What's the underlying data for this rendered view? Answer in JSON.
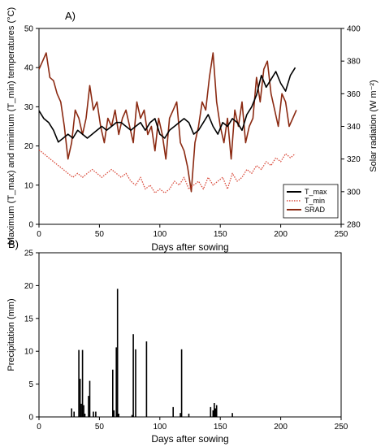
{
  "chart_data": [
    {
      "panel_label": "A)",
      "type": "line",
      "xlabel": "Days after sowing",
      "ylabel": "Maximum (T_max) and minimum (T_min) temperatures (°C)",
      "y2label": "Solar radiation (W m⁻²)",
      "xlim": [
        0,
        250
      ],
      "ylim": [
        0,
        50
      ],
      "y2lim": [
        280,
        400
      ],
      "xticks": [
        0,
        50,
        100,
        150,
        200,
        250
      ],
      "yticks": [
        0,
        10,
        20,
        30,
        40,
        50
      ],
      "y2ticks": [
        280,
        300,
        320,
        340,
        360,
        380,
        400
      ],
      "legend_position": "lower-right",
      "series": [
        {
          "name": "T_max",
          "axis": "left",
          "color": "#000000",
          "style": "solid",
          "x": [
            0,
            4,
            8,
            12,
            16,
            20,
            24,
            28,
            32,
            36,
            40,
            44,
            48,
            52,
            56,
            60,
            64,
            68,
            72,
            76,
            80,
            84,
            88,
            92,
            96,
            100,
            104,
            108,
            112,
            116,
            120,
            124,
            128,
            132,
            136,
            140,
            144,
            148,
            152,
            156,
            160,
            164,
            168,
            172,
            176,
            180,
            184,
            188,
            192,
            196,
            200,
            204,
            208,
            212
          ],
          "y": [
            29,
            27,
            26,
            24,
            21,
            22,
            23,
            22,
            24,
            23,
            22,
            23,
            24,
            25,
            24,
            25,
            26,
            26,
            25,
            24,
            25,
            26,
            24,
            26,
            27,
            23,
            22,
            24,
            25,
            26,
            27,
            26,
            23,
            24,
            26,
            28,
            25,
            23,
            26,
            25,
            27,
            26,
            24,
            28,
            30,
            33,
            38,
            35,
            37,
            39,
            36,
            34,
            38,
            40
          ]
        },
        {
          "name": "T_min",
          "axis": "left",
          "color": "#d94a3a",
          "style": "dotted",
          "x": [
            0,
            4,
            8,
            12,
            16,
            20,
            24,
            28,
            32,
            36,
            40,
            44,
            48,
            52,
            56,
            60,
            64,
            68,
            72,
            76,
            80,
            84,
            88,
            92,
            96,
            100,
            104,
            108,
            112,
            116,
            120,
            124,
            128,
            132,
            136,
            140,
            144,
            148,
            152,
            156,
            160,
            164,
            168,
            172,
            176,
            180,
            184,
            188,
            192,
            196,
            200,
            204,
            208,
            212
          ],
          "y": [
            19,
            18,
            17,
            16,
            15,
            14,
            13,
            12,
            13,
            12,
            13,
            14,
            13,
            12,
            13,
            14,
            13,
            12,
            13,
            11,
            10,
            12,
            9,
            10,
            8,
            9,
            8,
            9,
            11,
            10,
            12,
            9,
            10,
            11,
            9,
            12,
            10,
            11,
            12,
            9,
            13,
            11,
            12,
            14,
            13,
            15,
            14,
            16,
            15,
            17,
            16,
            18,
            17,
            18
          ]
        },
        {
          "name": "SRAD",
          "axis": "right",
          "color": "#8b2a12",
          "style": "solid",
          "x": [
            0,
            3,
            6,
            9,
            12,
            15,
            18,
            21,
            24,
            27,
            30,
            33,
            36,
            39,
            42,
            45,
            48,
            51,
            54,
            57,
            60,
            63,
            66,
            69,
            72,
            75,
            78,
            81,
            84,
            87,
            90,
            93,
            96,
            99,
            102,
            105,
            108,
            111,
            114,
            117,
            120,
            123,
            126,
            129,
            132,
            135,
            138,
            141,
            144,
            147,
            150,
            153,
            156,
            159,
            162,
            165,
            168,
            171,
            174,
            177,
            180,
            183,
            186,
            189,
            192,
            195,
            198,
            201,
            204,
            207,
            210,
            213
          ],
          "y": [
            375,
            380,
            385,
            370,
            368,
            360,
            355,
            340,
            320,
            330,
            350,
            345,
            335,
            345,
            365,
            350,
            355,
            340,
            330,
            345,
            340,
            350,
            335,
            345,
            350,
            340,
            330,
            355,
            345,
            350,
            335,
            340,
            325,
            345,
            335,
            320,
            345,
            350,
            355,
            330,
            325,
            315,
            300,
            330,
            340,
            355,
            350,
            370,
            385,
            355,
            340,
            330,
            345,
            320,
            350,
            340,
            355,
            330,
            340,
            345,
            370,
            355,
            375,
            380,
            360,
            350,
            340,
            360,
            355,
            340,
            345,
            350
          ]
        }
      ]
    },
    {
      "panel_label": "B)",
      "type": "bar",
      "xlabel": "Days after sowing",
      "ylabel": "Precipitation (mm)",
      "xlim": [
        0,
        250
      ],
      "ylim": [
        0,
        25
      ],
      "xticks": [
        0,
        50,
        100,
        150,
        200,
        250
      ],
      "yticks": [
        0,
        5,
        10,
        15,
        20,
        25
      ],
      "color": "#000000",
      "x": [
        27,
        29,
        33,
        34,
        35,
        36,
        37,
        38,
        41,
        42,
        45,
        47,
        61,
        62,
        64,
        65,
        66,
        77,
        78,
        80,
        89,
        111,
        117,
        118,
        124,
        142,
        144,
        145,
        146,
        147,
        160
      ],
      "values": [
        1.3,
        0.8,
        10.2,
        5.8,
        2.0,
        10.2,
        1.8,
        0.5,
        3.2,
        5.5,
        0.8,
        0.8,
        7.2,
        1.0,
        10.6,
        19.5,
        0.5,
        0.3,
        12.6,
        10.3,
        11.5,
        1.5,
        0.6,
        10.3,
        0.5,
        1.5,
        1.0,
        2.1,
        1.3,
        1.8,
        0.6
      ]
    }
  ]
}
